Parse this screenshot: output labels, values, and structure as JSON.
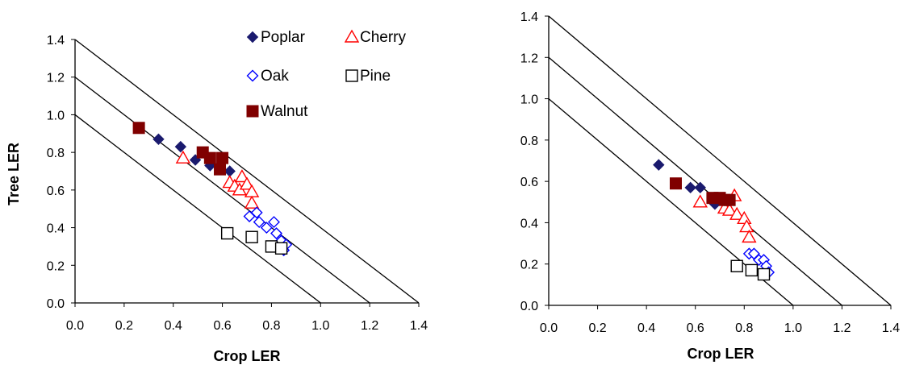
{
  "chart_data": [
    {
      "type": "scatter",
      "title": "",
      "xlabel": "Crop LER",
      "ylabel": "Tree LER",
      "xlim": [
        0.0,
        1.4
      ],
      "ylim": [
        0.0,
        1.4
      ],
      "x_ticks": [
        "0.0",
        "0.2",
        "0.4",
        "0.6",
        "0.8",
        "1.0",
        "1.2",
        "1.4"
      ],
      "y_ticks": [
        "0.0",
        "0.2",
        "0.4",
        "0.6",
        "0.8",
        "1.0",
        "1.2",
        "1.4"
      ],
      "grid": false,
      "reference_lines": [
        {
          "intercept": 1.0
        },
        {
          "intercept": 1.2
        },
        {
          "intercept": 1.4
        }
      ],
      "legend": {
        "placement": "top-right",
        "entries": [
          "Poplar",
          "Cherry",
          "Oak",
          "Pine",
          "Walnut"
        ]
      },
      "series": [
        {
          "name": "Poplar",
          "marker": "diamond",
          "filled": true,
          "color": "#1a1a6e",
          "points": [
            [
              0.34,
              0.87
            ],
            [
              0.43,
              0.83
            ],
            [
              0.49,
              0.76
            ],
            [
              0.55,
              0.73
            ],
            [
              0.63,
              0.7
            ]
          ]
        },
        {
          "name": "Cherry",
          "marker": "triangle",
          "filled": false,
          "color": "#ff0000",
          "points": [
            [
              0.44,
              0.77
            ],
            [
              0.63,
              0.64
            ],
            [
              0.65,
              0.62
            ],
            [
              0.67,
              0.6
            ],
            [
              0.68,
              0.67
            ],
            [
              0.7,
              0.63
            ],
            [
              0.72,
              0.59
            ],
            [
              0.72,
              0.53
            ]
          ]
        },
        {
          "name": "Oak",
          "marker": "diamond",
          "filled": false,
          "color": "#0000ff",
          "points": [
            [
              0.71,
              0.46
            ],
            [
              0.74,
              0.48
            ],
            [
              0.75,
              0.43
            ],
            [
              0.78,
              0.4
            ],
            [
              0.81,
              0.43
            ],
            [
              0.82,
              0.37
            ],
            [
              0.84,
              0.33
            ],
            [
              0.86,
              0.31
            ],
            [
              0.85,
              0.28
            ]
          ]
        },
        {
          "name": "Pine",
          "marker": "square",
          "filled": false,
          "color": "#000000",
          "points": [
            [
              0.62,
              0.37
            ],
            [
              0.72,
              0.35
            ],
            [
              0.8,
              0.3
            ],
            [
              0.84,
              0.29
            ]
          ]
        },
        {
          "name": "Walnut",
          "marker": "square",
          "filled": true,
          "color": "#800000",
          "points": [
            [
              0.26,
              0.93
            ],
            [
              0.52,
              0.8
            ],
            [
              0.55,
              0.77
            ],
            [
              0.59,
              0.71
            ],
            [
              0.6,
              0.77
            ]
          ]
        }
      ]
    },
    {
      "type": "scatter",
      "title": "",
      "xlabel": "Crop LER",
      "ylabel": "",
      "xlim": [
        0.0,
        1.4
      ],
      "ylim": [
        0.0,
        1.4
      ],
      "x_ticks": [
        "0.0",
        "0.2",
        "0.4",
        "0.6",
        "0.8",
        "1.0",
        "1.2",
        "1.4"
      ],
      "y_ticks": [
        "0.0",
        "0.2",
        "0.4",
        "0.6",
        "0.8",
        "1.0",
        "1.2",
        "1.4"
      ],
      "grid": false,
      "reference_lines": [
        {
          "intercept": 1.0
        },
        {
          "intercept": 1.2
        },
        {
          "intercept": 1.4
        }
      ],
      "series": [
        {
          "name": "Poplar",
          "marker": "diamond",
          "filled": true,
          "color": "#1a1a6e",
          "points": [
            [
              0.45,
              0.68
            ],
            [
              0.58,
              0.57
            ],
            [
              0.62,
              0.57
            ],
            [
              0.68,
              0.49
            ]
          ]
        },
        {
          "name": "Cherry",
          "marker": "triangle",
          "filled": false,
          "color": "#ff0000",
          "points": [
            [
              0.62,
              0.5
            ],
            [
              0.72,
              0.47
            ],
            [
              0.74,
              0.46
            ],
            [
              0.76,
              0.53
            ],
            [
              0.77,
              0.44
            ],
            [
              0.8,
              0.42
            ],
            [
              0.81,
              0.38
            ],
            [
              0.82,
              0.33
            ]
          ]
        },
        {
          "name": "Oak",
          "marker": "diamond",
          "filled": false,
          "color": "#0000ff",
          "points": [
            [
              0.82,
              0.25
            ],
            [
              0.84,
              0.25
            ],
            [
              0.86,
              0.22
            ],
            [
              0.88,
              0.22
            ],
            [
              0.89,
              0.19
            ],
            [
              0.9,
              0.16
            ]
          ]
        },
        {
          "name": "Pine",
          "marker": "square",
          "filled": false,
          "color": "#000000",
          "points": [
            [
              0.77,
              0.19
            ],
            [
              0.83,
              0.17
            ],
            [
              0.88,
              0.15
            ]
          ]
        },
        {
          "name": "Walnut",
          "marker": "square",
          "filled": true,
          "color": "#800000",
          "points": [
            [
              0.52,
              0.59
            ],
            [
              0.67,
              0.52
            ],
            [
              0.7,
              0.52
            ],
            [
              0.72,
              0.51
            ],
            [
              0.74,
              0.51
            ]
          ]
        }
      ]
    }
  ]
}
